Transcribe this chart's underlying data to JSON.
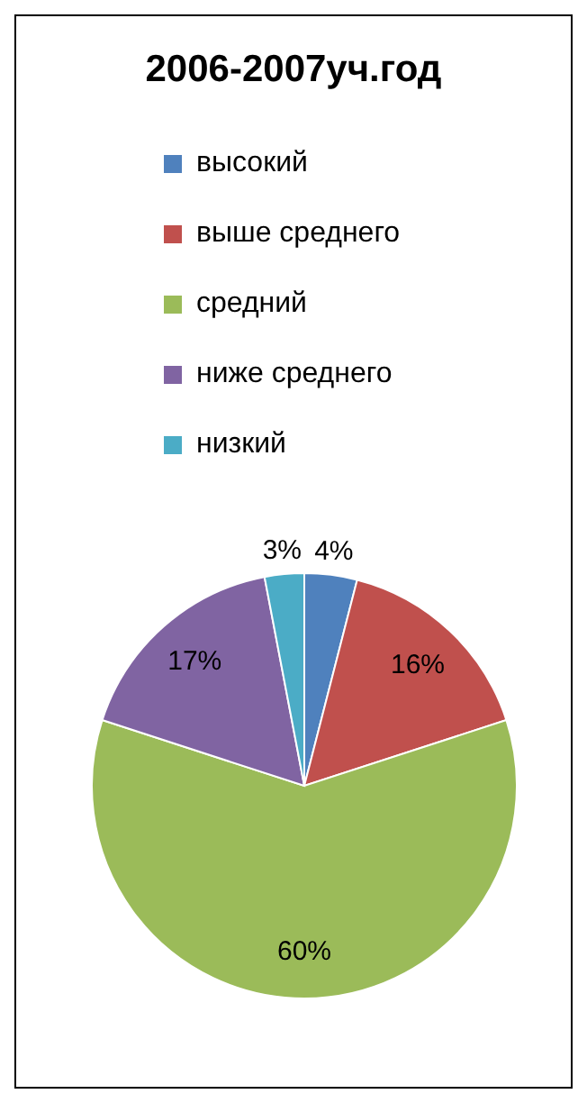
{
  "chart_data": {
    "type": "pie",
    "title": "2006-2007уч.год",
    "categories": [
      "высокий",
      "выше среднего",
      "средний",
      "ниже среднего",
      "низкий"
    ],
    "values": [
      4,
      16,
      60,
      17,
      3
    ],
    "value_labels": [
      "4%",
      "16%",
      "60%",
      "17%",
      "3%"
    ],
    "colors": [
      "#4f81bd",
      "#c0504d",
      "#9bbb59",
      "#8064a2",
      "#4bacc6"
    ],
    "legend": "top"
  }
}
